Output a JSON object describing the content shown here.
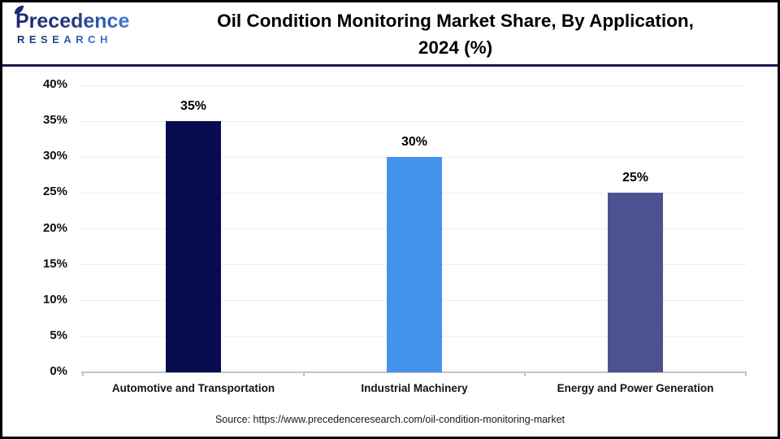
{
  "header": {
    "logo": {
      "line1": "Precedence",
      "line2": "RESEARCH",
      "color_dark": "#1E2A6E",
      "color_light": "#3D7AD4"
    },
    "title_line1": "Oil Condition Monitoring Market Share, By Application,",
    "title_line2": "2024 (%)",
    "divider_color": "#181852"
  },
  "chart_data": {
    "type": "bar",
    "title": "Oil Condition Monitoring Market Share, By Application, 2024 (%)",
    "categories": [
      "Automotive and Transportation",
      "Industrial Machinery",
      "Energy and Power Generation"
    ],
    "values": [
      35,
      30,
      25
    ],
    "value_labels": [
      "35%",
      "30%",
      "25%"
    ],
    "bar_colors": [
      "#070D4F",
      "#4592EC",
      "#4C528F"
    ],
    "xlabel": "",
    "ylabel": "",
    "ylim": [
      0,
      40
    ],
    "ytick_step": 5,
    "ytick_suffix": "%",
    "yticks": [
      "0%",
      "5%",
      "10%",
      "15%",
      "20%",
      "25%",
      "30%",
      "35%",
      "40%"
    ],
    "grid": "horizontal",
    "gridline_color": "#EEEEEE",
    "axis_color": "#C3C3C3",
    "legend": "none"
  },
  "footer": {
    "source": "Source: https://www.precedenceresearch.com/oil-condition-monitoring-market"
  }
}
